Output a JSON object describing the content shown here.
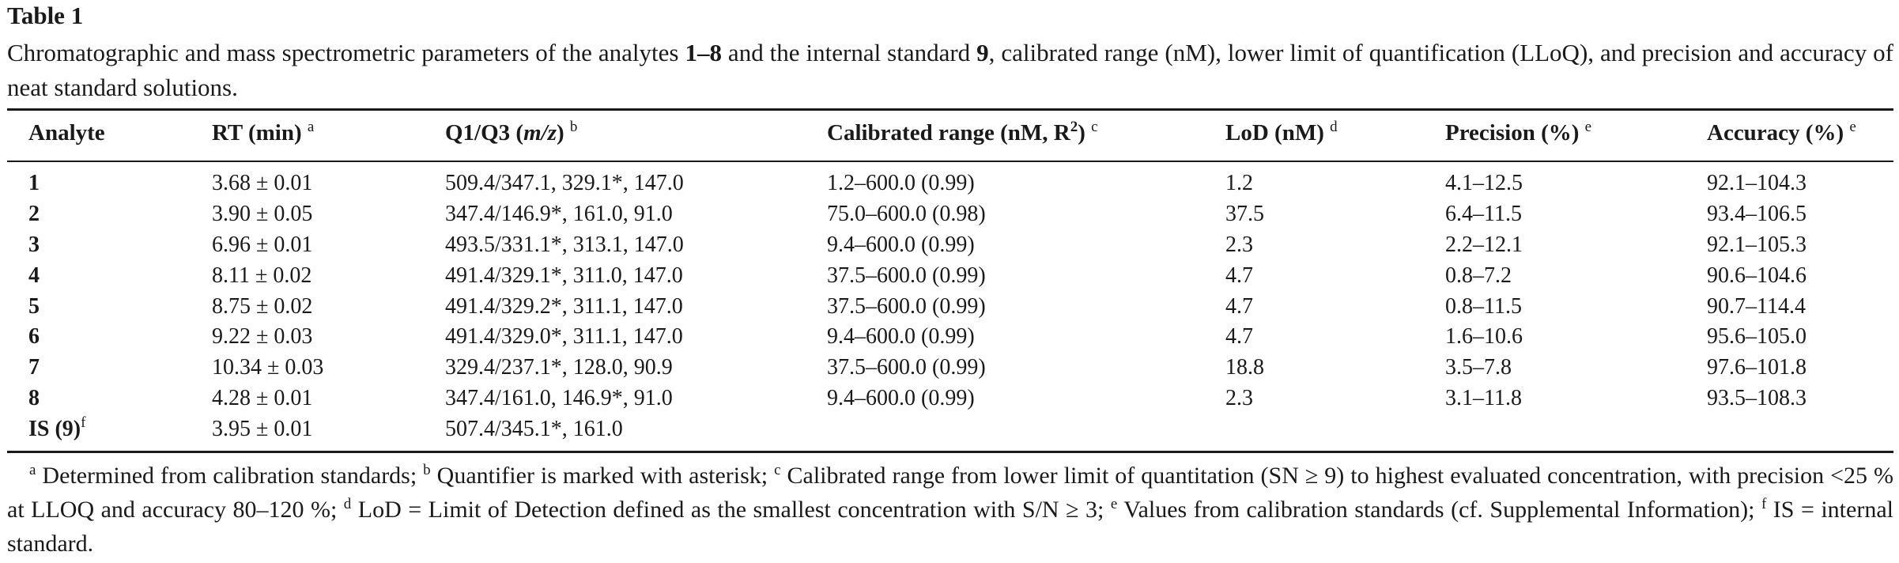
{
  "table_label": "Table 1",
  "caption": {
    "part1": "Chromatographic and mass spectrometric parameters of the analytes ",
    "bold1": "1–8",
    "part2": " and the internal standard ",
    "bold2": "9",
    "part3": ", calibrated range (nM), lower limit of quantification (LLoQ), and precision and accuracy of neat standard solutions."
  },
  "headers": {
    "analyte": "Analyte",
    "rt": "RT (min)",
    "rt_note": "a",
    "q1q3_pre": "Q1/Q3 (",
    "q1q3_italic": "m/z",
    "q1q3_post": ")",
    "q1q3_note": "b",
    "range_pre": "Calibrated range (nM, R",
    "range_exp": "2",
    "range_post": ")",
    "range_note": "c",
    "lod": "LoD (nM)",
    "lod_note": "d",
    "precision": "Precision (%)",
    "precision_note": "e",
    "accuracy": "Accuracy (%)",
    "accuracy_note": "e"
  },
  "rows": [
    {
      "analyte": "1",
      "rt": "3.68 ± 0.01",
      "q1q3": "509.4/347.1, 329.1*, 147.0",
      "range": "1.2–600.0 (0.99)",
      "lod": "1.2",
      "precision": "4.1–12.5",
      "accuracy": "92.1–104.3"
    },
    {
      "analyte": "2",
      "rt": "3.90 ± 0.05",
      "q1q3": "347.4/146.9*, 161.0, 91.0",
      "range": "75.0–600.0 (0.98)",
      "lod": "37.5",
      "precision": "6.4–11.5",
      "accuracy": "93.4–106.5"
    },
    {
      "analyte": "3",
      "rt": "6.96 ± 0.01",
      "q1q3": "493.5/331.1*, 313.1, 147.0",
      "range": "9.4–600.0 (0.99)",
      "lod": "2.3",
      "precision": "2.2–12.1",
      "accuracy": "92.1–105.3"
    },
    {
      "analyte": "4",
      "rt": "8.11 ± 0.02",
      "q1q3": "491.4/329.1*, 311.0, 147.0",
      "range": "37.5–600.0 (0.99)",
      "lod": "4.7",
      "precision": "0.8–7.2",
      "accuracy": "90.6–104.6"
    },
    {
      "analyte": "5",
      "rt": "8.75 ± 0.02",
      "q1q3": "491.4/329.2*, 311.1, 147.0",
      "range": "37.5–600.0 (0.99)",
      "lod": "4.7",
      "precision": "0.8–11.5",
      "accuracy": "90.7–114.4"
    },
    {
      "analyte": "6",
      "rt": "9.22 ± 0.03",
      "q1q3": "491.4/329.0*, 311.1, 147.0",
      "range": "9.4–600.0 (0.99)",
      "lod": "4.7",
      "precision": "1.6–10.6",
      "accuracy": "95.6–105.0"
    },
    {
      "analyte": "7",
      "rt": "10.34 ± 0.03",
      "q1q3": "329.4/237.1*, 128.0, 90.9",
      "range": "37.5–600.0 (0.99)",
      "lod": "18.8",
      "precision": "3.5–7.8",
      "accuracy": "97.6–101.8"
    },
    {
      "analyte": "8",
      "rt": "4.28 ± 0.01",
      "q1q3": "347.4/161.0, 146.9*, 91.0",
      "range": "9.4–600.0 (0.99)",
      "lod": "2.3",
      "precision": "3.1–11.8",
      "accuracy": "93.5–108.3"
    }
  ],
  "is_row": {
    "analyte": "IS (9)",
    "analyte_note": "f",
    "rt": "3.95 ± 0.01",
    "q1q3": "507.4/345.1*, 161.0"
  },
  "footnotes": [
    {
      "mark": "a",
      "text": " Determined from calibration standards; "
    },
    {
      "mark": "b",
      "text": " Quantifier is marked with asterisk; "
    },
    {
      "mark": "c",
      "text": " Calibrated range from lower limit of quantitation (SN ≥ 9) to highest evaluated concentration, with precision <25 % at LLOQ and accuracy 80–120 %; "
    },
    {
      "mark": "d",
      "text": " LoD = Limit of Detection defined as the smallest concentration with S/N ≥ 3; "
    },
    {
      "mark": "e",
      "text": " Values from calibration standards (cf. Supplemental Information); "
    },
    {
      "mark": "f",
      "text": " IS = internal standard."
    }
  ]
}
